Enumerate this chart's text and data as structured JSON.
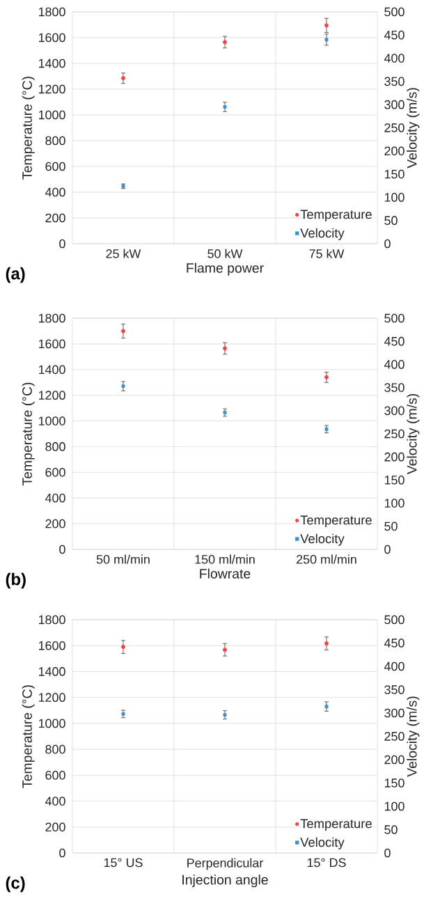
{
  "chart_data": [
    {
      "type": "scatter",
      "categories": [
        "25 kW",
        "50 kW",
        "75 kW"
      ],
      "xlabel": "Flame power",
      "ylabel": "Temperature (°C)",
      "y2label": "Velocity (m/s)",
      "annotations": [
        "(a)"
      ],
      "ylim": [
        0,
        1800
      ],
      "yticks": [
        0,
        200,
        400,
        600,
        800,
        1000,
        1200,
        1400,
        1600,
        1800
      ],
      "y2lim": [
        0,
        500
      ],
      "y2ticks": [
        0,
        50,
        100,
        150,
        200,
        250,
        300,
        350,
        400,
        450,
        500
      ],
      "grid": true,
      "legend": "bottom right",
      "series": [
        {
          "name": "Temperature",
          "color": "#f24545",
          "marker": "circle",
          "values": [
            1285,
            1565,
            1695
          ],
          "errors": [
            40,
            45,
            55
          ]
        },
        {
          "name": "Velocity",
          "color": "#3b8fd0",
          "marker": "square",
          "axis": "y2",
          "values": [
            124,
            295,
            440
          ],
          "errors": [
            5,
            10,
            12
          ]
        }
      ]
    },
    {
      "type": "scatter",
      "categories": [
        "50 ml/min",
        "150 ml/min",
        "250 ml/min"
      ],
      "xlabel": "Flowrate",
      "ylabel": "Temperature (°C)",
      "y2label": "Velocity (m/s)",
      "annotations": [
        "(b)"
      ],
      "ylim": [
        0,
        1800
      ],
      "yticks": [
        0,
        200,
        400,
        600,
        800,
        1000,
        1200,
        1400,
        1600,
        1800
      ],
      "y2lim": [
        0,
        500
      ],
      "y2ticks": [
        0,
        50,
        100,
        150,
        200,
        250,
        300,
        350,
        400,
        450,
        500
      ],
      "grid": true,
      "legend": "bottom right",
      "series": [
        {
          "name": "Temperature",
          "color": "#f24545",
          "marker": "circle",
          "values": [
            1700,
            1565,
            1340
          ],
          "errors": [
            55,
            45,
            40
          ]
        },
        {
          "name": "Velocity",
          "color": "#3b8fd0",
          "marker": "square",
          "axis": "y2",
          "values": [
            353,
            296,
            260
          ],
          "errors": [
            10,
            8,
            8
          ]
        }
      ]
    },
    {
      "type": "scatter",
      "categories": [
        "15° US",
        "Perpendicular",
        "15° DS"
      ],
      "xlabel": "Injection angle",
      "ylabel": "Temperature (°C)",
      "y2label": "Velocity (m/s)",
      "annotations": [
        "(c)"
      ],
      "ylim": [
        0,
        1800
      ],
      "yticks": [
        0,
        200,
        400,
        600,
        800,
        1000,
        1200,
        1400,
        1600,
        1800
      ],
      "y2lim": [
        0,
        500
      ],
      "y2ticks": [
        0,
        50,
        100,
        150,
        200,
        250,
        300,
        350,
        400,
        450,
        500
      ],
      "grid": true,
      "legend": "bottom right",
      "series": [
        {
          "name": "Temperature",
          "color": "#f24545",
          "marker": "circle",
          "values": [
            1590,
            1568,
            1617
          ],
          "errors": [
            50,
            48,
            50
          ]
        },
        {
          "name": "Velocity",
          "color": "#3b8fd0",
          "marker": "square",
          "axis": "y2",
          "values": [
            298,
            296,
            314
          ],
          "errors": [
            8,
            9,
            10
          ]
        }
      ]
    }
  ]
}
